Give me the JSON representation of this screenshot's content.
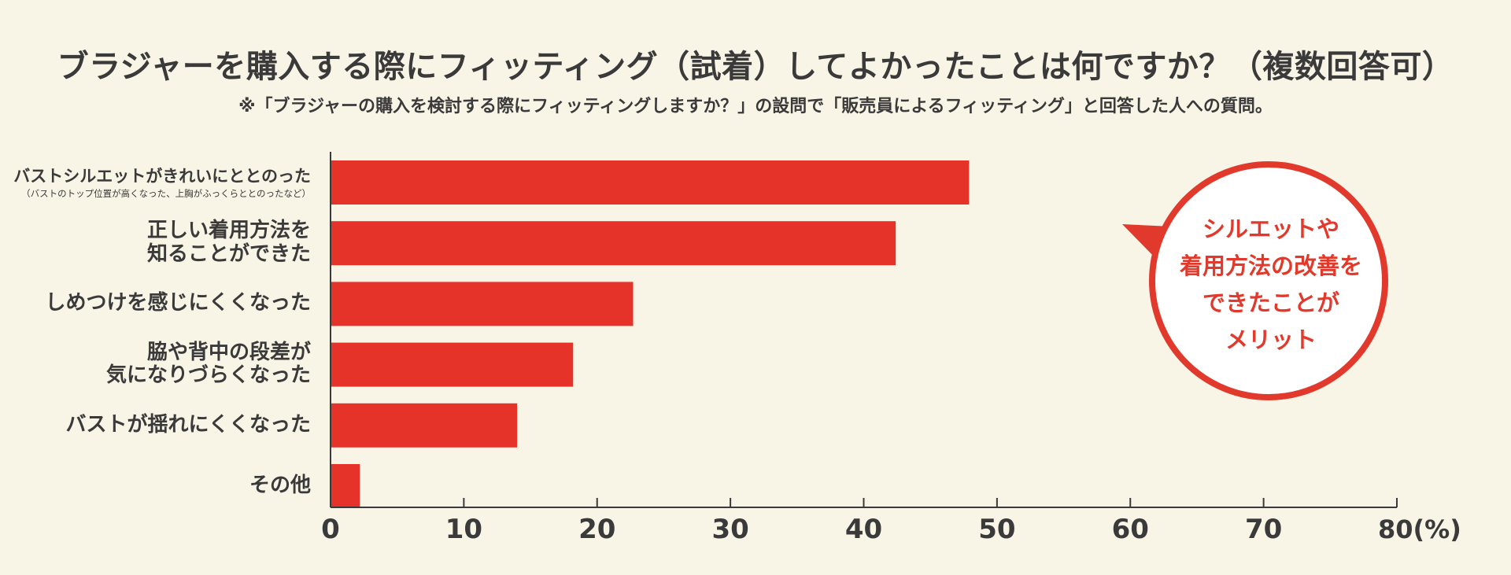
{
  "title": "ブラジャーを購入する際にフィッティング（試着）してよかったことは何ですか？（複数回答可）",
  "subtitle": "※「ブラジャーの購入を検討する際にフィッティングしますか？」の設問で「販売員によるフィッティング」と回答した人への質問。",
  "callout": "シルエットや\n着用方法の改善を\nできたことが\nメリット",
  "colors": {
    "bar": "#e5332a",
    "background": "#f8f4e6",
    "text": "#3a3a3a",
    "callout_border": "#e13a2c",
    "callout_fill": "#ffffff"
  },
  "chart_data": {
    "type": "bar",
    "orientation": "horizontal",
    "categories": [
      {
        "label": "バストシルエットがきれいにととのった",
        "sublabel": "（バストのトップ位置が高くなった、上胸がふっくらととのったなど）"
      },
      {
        "label": "正しい着用方法を\n知ることができた"
      },
      {
        "label": "しめつけを感じにくくなった"
      },
      {
        "label": "脇や背中の段差が\n気になりづらくなった"
      },
      {
        "label": "バストが揺れにくくなった"
      },
      {
        "label": "その他"
      }
    ],
    "values": [
      47.9,
      42.4,
      22.7,
      18.2,
      14.0,
      2.2
    ],
    "xlim": [
      0,
      80
    ],
    "ticks": [
      0,
      10,
      20,
      30,
      40,
      50,
      60,
      70,
      80
    ],
    "tick_labels": [
      "0",
      "10",
      "20",
      "30",
      "40",
      "50",
      "60",
      "70",
      "80(%)"
    ],
    "grid": false
  }
}
